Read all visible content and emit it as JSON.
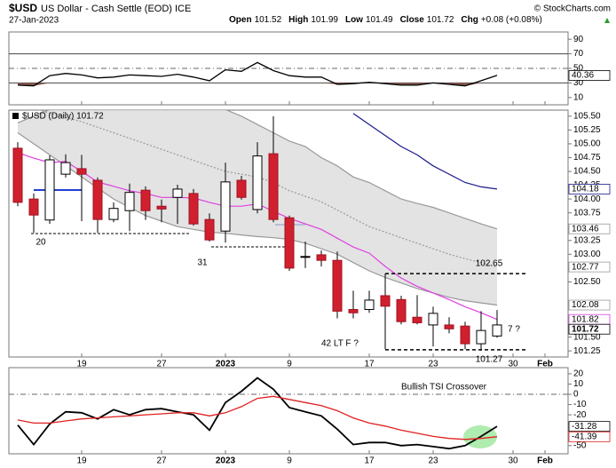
{
  "header": {
    "symbol": "$USD",
    "name": "US Dollar - Cash Settle (EOD) ICE",
    "date": "27-Jan-2023",
    "source": "© StockCharts.com",
    "ohlc": [
      {
        "label": "Open",
        "value": "101.52"
      },
      {
        "label": "High",
        "value": "101.99"
      },
      {
        "label": "Low",
        "value": "101.49"
      },
      {
        "label": "Close",
        "value": "101.72"
      },
      {
        "label": "Chg",
        "value": "+0.08 (+0.08%)"
      }
    ]
  },
  "chart_data": [
    {
      "type": "line",
      "ylim": [
        0,
        100
      ],
      "yticks": [
        90,
        70,
        50,
        30,
        10
      ],
      "ref_lines": [
        {
          "value": 70,
          "dash": false
        },
        {
          "value": 50,
          "dash": true
        },
        {
          "value": 30,
          "dash": false
        }
      ],
      "fill_color": "#8b5a52",
      "series": [
        {
          "color": "#000000",
          "values": [
            27,
            26,
            40,
            43,
            41,
            37,
            38,
            41,
            40,
            39,
            42,
            38,
            33,
            48,
            46,
            58,
            47,
            40,
            38,
            38,
            28,
            29,
            31,
            29,
            27,
            27,
            30,
            28,
            26,
            33,
            40.36,
            null,
            null,
            null
          ]
        }
      ]
    },
    {
      "type": "candlestick",
      "title": "$USD (Daily) 101.72",
      "categories": [
        null,
        null,
        null,
        null,
        "19",
        null,
        null,
        null,
        null,
        "27",
        null,
        null,
        null,
        "2023",
        null,
        null,
        null,
        "9",
        null,
        null,
        null,
        null,
        "17",
        null,
        null,
        null,
        "23",
        null,
        null,
        null,
        null,
        "30",
        null,
        "Feb"
      ],
      "open": [
        104.92,
        104.0,
        103.62,
        104.45,
        104.55,
        104.34,
        103.63,
        103.79,
        104.16,
        103.87,
        104.03,
        104.1,
        103.63,
        103.42,
        104.34,
        103.81,
        104.82,
        103.66,
        102.95,
        102.99,
        102.89,
        102.0,
        102.0,
        102.25,
        102.18,
        101.86,
        101.72,
        101.72,
        101.7,
        101.38,
        101.52,
        null,
        null,
        null
      ],
      "high": [
        105.03,
        104.1,
        104.79,
        104.81,
        104.8,
        104.39,
        103.94,
        104.28,
        104.23,
        103.99,
        104.26,
        104.18,
        103.74,
        104.66,
        104.42,
        105.03,
        105.5,
        103.7,
        103.23,
        103.07,
        103.05,
        102.34,
        102.34,
        102.65,
        102.25,
        102.26,
        102.05,
        101.86,
        101.78,
        101.97,
        101.99,
        null,
        null,
        null
      ],
      "low": [
        103.87,
        103.39,
        103.55,
        104.39,
        103.6,
        103.39,
        103.58,
        103.42,
        103.62,
        103.58,
        103.55,
        103.52,
        103.23,
        103.21,
        103.99,
        103.74,
        103.58,
        102.7,
        102.75,
        102.78,
        101.84,
        101.84,
        101.94,
        101.28,
        101.73,
        101.73,
        101.33,
        101.57,
        101.28,
        101.25,
        101.49,
        null,
        null,
        null
      ],
      "close": [
        103.94,
        103.71,
        104.71,
        104.66,
        104.45,
        103.63,
        103.83,
        104.12,
        103.79,
        103.82,
        104.18,
        103.55,
        103.26,
        104.31,
        104.03,
        104.78,
        103.63,
        102.75,
        102.96,
        102.89,
        101.97,
        101.94,
        102.17,
        102.06,
        101.78,
        101.76,
        101.93,
        101.65,
        101.38,
        101.62,
        101.72,
        null,
        null,
        null
      ],
      "up_color": "#ffffff",
      "down_color": "#d0202e",
      "ylim": [
        101.14,
        105.61
      ],
      "yticks": [
        {
          "value": 105.5,
          "label": "105.50"
        },
        105.25,
        {
          "value": 105,
          "label": "105.00"
        },
        104.75,
        {
          "value": 104.5,
          "label": "104.50"
        },
        104.25,
        {
          "value": 104,
          "label": "104.00"
        },
        103.75,
        103.25,
        {
          "value": 103,
          "label": "103.00"
        },
        {
          "value": 102.5,
          "label": "102.50"
        },
        {
          "value": 101.5,
          "label": "101.50"
        },
        101.25
      ],
      "band_fill": "#dcdcdc",
      "overlays": [
        {
          "color": "#999999",
          "dash": false,
          "values": [
            105.38,
            105.5,
            105.62,
            105.75,
            105.8,
            105.8,
            105.8,
            105.78,
            105.75,
            105.72,
            105.7,
            105.68,
            105.66,
            105.62,
            105.5,
            105.35,
            105.2,
            105.05,
            104.95,
            104.75,
            104.6,
            104.4,
            104.3,
            104.15,
            104.0,
            103.92,
            103.85,
            103.75,
            103.65,
            103.55,
            103.46,
            null,
            null,
            null
          ]
        },
        {
          "color": "#999999",
          "dash": false,
          "values": [
            105.2,
            105.0,
            104.8,
            104.6,
            104.4,
            104.2,
            104.0,
            103.85,
            103.7,
            103.6,
            103.5,
            103.45,
            103.4,
            103.38,
            103.35,
            103.32,
            103.3,
            103.27,
            103.2,
            103.1,
            103.0,
            102.85,
            102.7,
            102.58,
            102.48,
            102.38,
            102.3,
            102.22,
            102.16,
            102.12,
            102.08,
            null,
            null,
            null
          ]
        },
        {
          "color": "#999999",
          "dash": true,
          "values": [
            105.7,
            105.65,
            105.55,
            105.48,
            105.4,
            105.3,
            105.2,
            105.1,
            105.0,
            104.9,
            104.8,
            104.7,
            104.6,
            104.5,
            104.45,
            104.4,
            104.3,
            104.15,
            104.05,
            103.95,
            103.8,
            103.65,
            103.5,
            103.4,
            103.3,
            103.2,
            103.1,
            103.0,
            102.92,
            102.85,
            102.77,
            null,
            null,
            null
          ]
        },
        {
          "color": "#e040e0",
          "dash": false,
          "values": [
            104.84,
            104.74,
            104.66,
            104.68,
            104.5,
            104.31,
            104.23,
            104.15,
            104.1,
            104.03,
            104.03,
            104.02,
            103.94,
            103.87,
            103.87,
            103.91,
            103.78,
            103.65,
            103.55,
            103.45,
            103.29,
            103.13,
            103.02,
            102.78,
            102.57,
            102.42,
            102.3,
            102.18,
            102.05,
            101.94,
            101.82,
            null,
            null,
            null
          ]
        },
        {
          "color": "#1a1a8c",
          "dash": false,
          "values": [
            null,
            null,
            null,
            null,
            null,
            null,
            null,
            null,
            null,
            null,
            null,
            null,
            null,
            null,
            null,
            null,
            null,
            null,
            null,
            null,
            null,
            105.55,
            105.35,
            105.15,
            104.95,
            104.8,
            104.6,
            104.45,
            104.3,
            104.22,
            104.18,
            null,
            null,
            null
          ]
        }
      ],
      "annotations": [
        {
          "text": "20"
        },
        {
          "text": "31"
        },
        {
          "text": "42 LT F ?"
        },
        {
          "text": "7 ?"
        }
      ],
      "price_marks": [
        {
          "value": 102.65
        },
        {
          "value": 101.27
        }
      ]
    },
    {
      "type": "line",
      "ylim": [
        -58,
        26
      ],
      "yticks": [
        20,
        10,
        0,
        -10,
        -20,
        -50
      ],
      "ref_lines": [
        {
          "value": 0,
          "dash": true
        }
      ],
      "annotation": "Bullish TSI Crossover",
      "series": [
        {
          "color": "#000000",
          "values": [
            -30,
            -49,
            -29,
            -17,
            -18,
            -24,
            -15,
            -20,
            -15,
            -14,
            -17,
            -20,
            -35,
            -8,
            3,
            16,
            5,
            -13,
            -17,
            -21,
            -34,
            -49,
            -47,
            -47,
            -50,
            -49,
            -51,
            -53,
            -50,
            -41,
            -31.28,
            null,
            null,
            null
          ]
        },
        {
          "color": "#e02020",
          "values": [
            -25,
            -28,
            -28,
            -26,
            -24,
            -23,
            -22,
            -21,
            -20,
            -19,
            -18,
            -18,
            -21,
            -18,
            -12,
            -4,
            -2,
            -5,
            -8,
            -11,
            -16,
            -23,
            -28,
            -31,
            -35,
            -38,
            -41,
            -43,
            -44,
            -43,
            -41.39,
            null,
            null,
            null
          ]
        }
      ]
    }
  ]
}
